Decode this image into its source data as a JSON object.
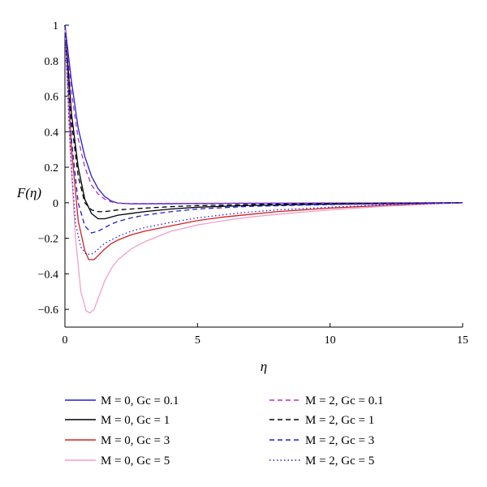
{
  "chart_data": {
    "type": "line",
    "ylabel": "F(η)",
    "xlabel": "η",
    "xlim": [
      0,
      15
    ],
    "ylim": [
      -0.7,
      1
    ],
    "x_ticks": [
      0,
      5,
      10,
      15
    ],
    "y_ticks": [
      1,
      0.8,
      0.6,
      0.4,
      0.2,
      0,
      -0.2,
      -0.4,
      -0.6
    ],
    "y_tick_labels": [
      "1",
      "0.8",
      "0.6",
      "0.4",
      "0.2",
      "0",
      "−0.2",
      "−0.4",
      "−0.6"
    ],
    "grid": false,
    "legend_position": "bottom",
    "series": [
      {
        "name": "M = 0, Gc = 0.1",
        "color": "#1f1fd6",
        "dash": "solid",
        "x": [
          0,
          0.25,
          0.5,
          0.75,
          1,
          1.25,
          1.5,
          1.75,
          2,
          2.5,
          3,
          4,
          5,
          7,
          10,
          15
        ],
        "y": [
          1,
          0.68,
          0.42,
          0.26,
          0.15,
          0.08,
          0.035,
          0.01,
          -0.002,
          -0.006,
          -0.006,
          -0.005,
          -0.004,
          -0.003,
          -0.002,
          0
        ]
      },
      {
        "name": "M = 0, Gc = 1",
        "color": "#000000",
        "dash": "solid",
        "x": [
          0,
          0.25,
          0.5,
          0.75,
          1,
          1.25,
          1.5,
          1.75,
          2,
          2.5,
          3,
          4,
          5,
          7,
          10,
          15
        ],
        "y": [
          1,
          0.5,
          0.2,
          0.02,
          -0.06,
          -0.09,
          -0.09,
          -0.08,
          -0.07,
          -0.06,
          -0.05,
          -0.035,
          -0.025,
          -0.015,
          -0.008,
          0
        ]
      },
      {
        "name": "M = 0, Gc = 3",
        "color": "#d42020",
        "dash": "solid",
        "x": [
          0,
          0.25,
          0.5,
          0.75,
          0.9,
          1.1,
          1.3,
          1.5,
          1.75,
          2,
          2.5,
          3,
          4,
          5,
          6,
          7,
          8,
          10,
          12,
          15
        ],
        "y": [
          1,
          0.3,
          -0.1,
          -0.27,
          -0.32,
          -0.32,
          -0.29,
          -0.26,
          -0.23,
          -0.21,
          -0.18,
          -0.16,
          -0.13,
          -0.1,
          -0.08,
          -0.065,
          -0.05,
          -0.03,
          -0.015,
          0
        ]
      },
      {
        "name": "M = 0, Gc = 5",
        "color": "#f0a0c8",
        "dash": "solid",
        "x": [
          0,
          0.2,
          0.4,
          0.6,
          0.8,
          0.95,
          1.1,
          1.3,
          1.5,
          1.75,
          2,
          2.5,
          3,
          4,
          5,
          6,
          7,
          8,
          10,
          12,
          15
        ],
        "y": [
          1,
          0.3,
          -0.2,
          -0.5,
          -0.61,
          -0.62,
          -0.6,
          -0.52,
          -0.44,
          -0.37,
          -0.32,
          -0.26,
          -0.22,
          -0.16,
          -0.125,
          -0.1,
          -0.08,
          -0.065,
          -0.04,
          -0.02,
          0
        ]
      },
      {
        "name": "M = 2, Gc = 0.1",
        "color": "#b030c0",
        "dash": "dashed",
        "x": [
          0,
          0.25,
          0.5,
          0.75,
          1,
          1.25,
          1.5,
          1.75,
          2,
          2.5,
          3,
          4,
          5,
          7,
          10,
          15
        ],
        "y": [
          1,
          0.62,
          0.36,
          0.2,
          0.1,
          0.05,
          0.02,
          0.005,
          -0.002,
          -0.004,
          -0.004,
          -0.003,
          -0.003,
          -0.002,
          -0.001,
          0
        ]
      },
      {
        "name": "M = 2, Gc = 1",
        "color": "#000000",
        "dash": "dashed",
        "x": [
          0,
          0.25,
          0.5,
          0.75,
          1,
          1.25,
          1.5,
          1.75,
          2,
          2.5,
          3,
          4,
          5,
          7,
          10,
          15
        ],
        "y": [
          1,
          0.45,
          0.15,
          0.0,
          -0.04,
          -0.05,
          -0.05,
          -0.045,
          -0.04,
          -0.035,
          -0.03,
          -0.022,
          -0.016,
          -0.01,
          -0.005,
          0
        ]
      },
      {
        "name": "M = 2, Gc = 3",
        "color": "#1f1fd6",
        "dash": "dashed",
        "x": [
          0,
          0.25,
          0.5,
          0.75,
          1,
          1.25,
          1.5,
          1.75,
          2,
          2.5,
          3,
          4,
          5,
          7,
          10,
          15
        ],
        "y": [
          1,
          0.35,
          0.0,
          -0.13,
          -0.17,
          -0.16,
          -0.14,
          -0.12,
          -0.105,
          -0.085,
          -0.07,
          -0.05,
          -0.035,
          -0.02,
          -0.01,
          0
        ]
      },
      {
        "name": "M = 2, Gc = 5",
        "color": "#1f1fd6",
        "dash": "dotted",
        "x": [
          0,
          0.2,
          0.4,
          0.6,
          0.8,
          1,
          1.2,
          1.4,
          1.6,
          2,
          2.5,
          3,
          4,
          5,
          6,
          7,
          8,
          10,
          12,
          15
        ],
        "y": [
          1,
          0.3,
          -0.12,
          -0.25,
          -0.29,
          -0.29,
          -0.27,
          -0.24,
          -0.22,
          -0.19,
          -0.16,
          -0.14,
          -0.11,
          -0.085,
          -0.067,
          -0.052,
          -0.04,
          -0.025,
          -0.012,
          0
        ]
      }
    ]
  }
}
